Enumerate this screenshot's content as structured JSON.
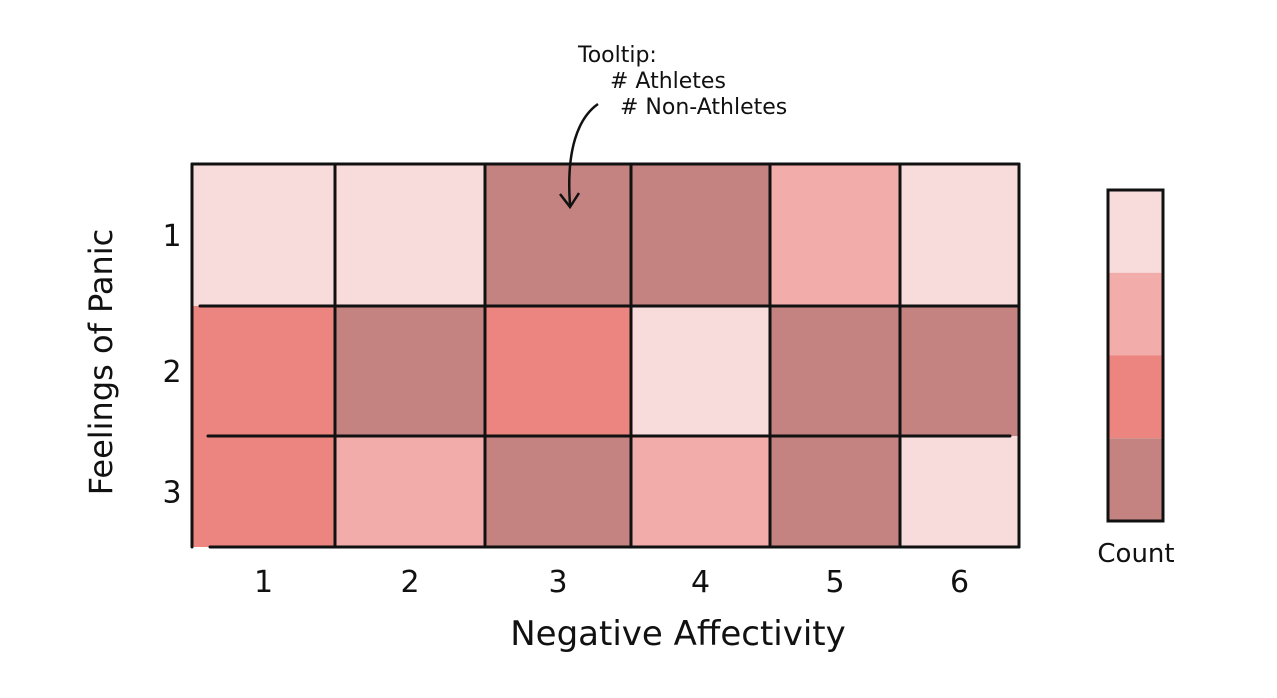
{
  "chart_data": {
    "type": "heatmap",
    "title": "",
    "xlabel": "Negative Affectivity",
    "ylabel": "Feelings of Panic",
    "x_categories": [
      "1",
      "2",
      "3",
      "4",
      "5",
      "6"
    ],
    "y_categories": [
      "1",
      "2",
      "3"
    ],
    "levels": [
      1,
      2,
      3,
      4
    ],
    "values": [
      [
        1,
        1,
        4,
        4,
        2,
        1
      ],
      [
        3,
        4,
        3,
        1,
        4,
        4
      ],
      [
        3,
        2,
        4,
        2,
        4,
        1
      ]
    ],
    "legend": {
      "label": "Count",
      "position": "right",
      "colors": [
        "#f8dcdb",
        "#f2adab",
        "#ec8580",
        "#c48380"
      ]
    },
    "annotation": {
      "lines": [
        "Tooltip:",
        "# Athletes",
        "# Non-Athletes"
      ],
      "target_cell": {
        "row": "1",
        "col": "3"
      }
    },
    "grid": true
  }
}
